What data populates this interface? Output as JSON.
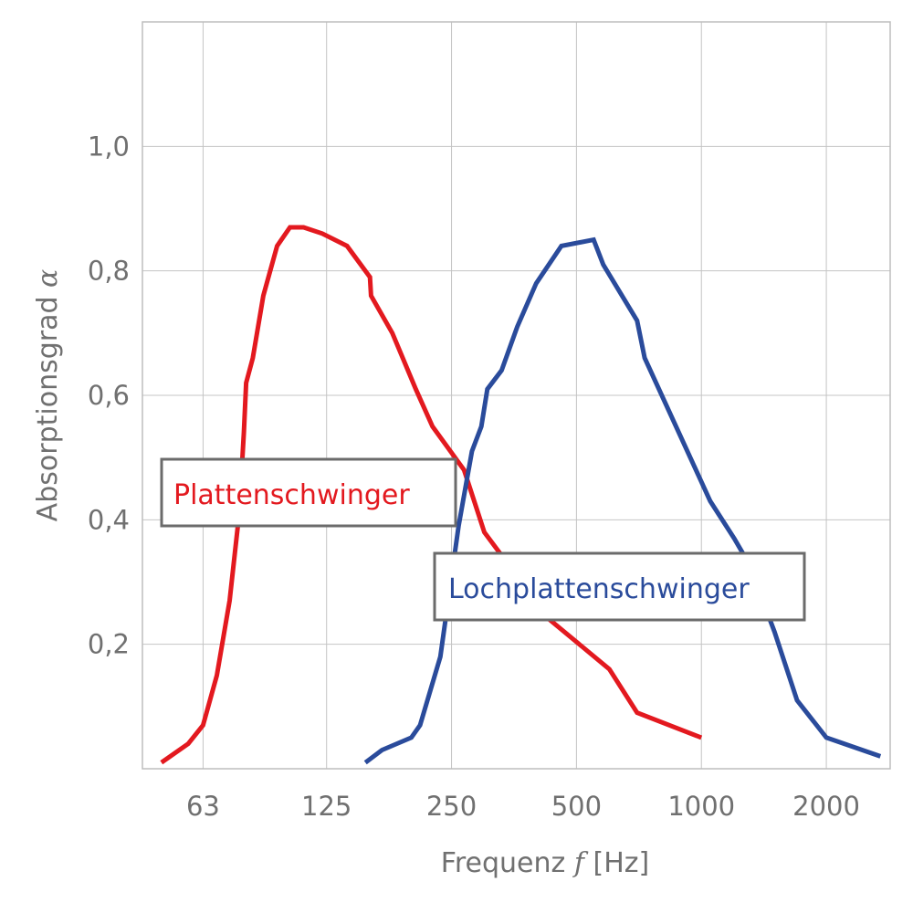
{
  "chart_data": {
    "type": "line",
    "xlabel": "Frequenz",
    "xlabel_symbol": "f",
    "xlabel_unit": "[Hz]",
    "ylabel": "Absorptionsgrad",
    "ylabel_symbol": "α",
    "x_scale": "log2",
    "xlim": [
      45,
      2850
    ],
    "ylim": [
      0.0,
      1.2
    ],
    "grid": true,
    "x_ticks": [
      63,
      125,
      250,
      500,
      1000,
      2000
    ],
    "x_tick_labels": [
      "63",
      "125",
      "250",
      "500",
      "1000",
      "2000"
    ],
    "y_ticks": [
      0.2,
      0.4,
      0.6,
      0.8,
      1.0
    ],
    "y_tick_labels": [
      "0,2",
      "0,4",
      "0,6",
      "0,8",
      "1,0"
    ],
    "series": [
      {
        "name": "Plattenschwinger",
        "color": "#e3191f",
        "x": [
          50,
          58,
          63,
          68,
          73,
          77,
          79,
          80,
          83,
          88,
          95,
          102,
          110,
          122,
          140,
          159,
          160,
          180,
          205,
          225,
          268,
          300,
          430,
          600,
          700,
          1000
        ],
        "y": [
          0.01,
          0.04,
          0.07,
          0.15,
          0.27,
          0.41,
          0.54,
          0.62,
          0.66,
          0.76,
          0.84,
          0.87,
          0.87,
          0.86,
          0.84,
          0.79,
          0.76,
          0.7,
          0.61,
          0.55,
          0.48,
          0.38,
          0.24,
          0.16,
          0.09,
          0.05
        ]
      },
      {
        "name": "Lochplattenschwinger",
        "color": "#2a4b9b",
        "x": [
          155,
          170,
          200,
          210,
          235,
          260,
          280,
          295,
          305,
          330,
          360,
          400,
          460,
          550,
          580,
          700,
          730,
          1050,
          1200,
          1300,
          1500,
          1700,
          2000,
          2700
        ],
        "y": [
          0.01,
          0.03,
          0.05,
          0.07,
          0.18,
          0.39,
          0.51,
          0.55,
          0.61,
          0.64,
          0.71,
          0.78,
          0.84,
          0.85,
          0.81,
          0.72,
          0.66,
          0.43,
          0.37,
          0.33,
          0.22,
          0.11,
          0.05,
          0.02
        ]
      }
    ],
    "legend": [
      {
        "label": "Plattenschwinger",
        "series": 0
      },
      {
        "label": "Lochplattenschwinger",
        "series": 1
      }
    ]
  }
}
